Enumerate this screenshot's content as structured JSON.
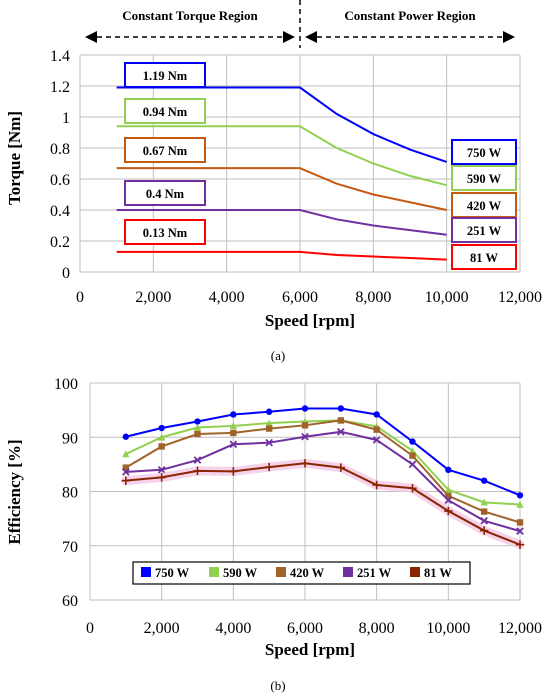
{
  "chart_data": [
    {
      "type": "line",
      "id": "torque",
      "regions": [
        {
          "label": "Constant Torque Region",
          "x_range": [
            0,
            6000
          ]
        },
        {
          "label": "Constant Power Region",
          "x_range": [
            6000,
            12000
          ]
        }
      ],
      "xlabel": "Speed [rpm]",
      "ylabel": "Torque [Nm]",
      "xlim": [
        0,
        12000
      ],
      "ylim": [
        0,
        1.4
      ],
      "x_ticks": [
        0,
        2000,
        4000,
        6000,
        8000,
        10000,
        12000
      ],
      "x_tick_labels": [
        "0",
        "2,000",
        "4,000",
        "6,000",
        "8,000",
        "10,000",
        "12,000"
      ],
      "y_ticks": [
        0,
        0.2,
        0.4,
        0.6,
        0.8,
        1.0,
        1.2,
        1.4
      ],
      "y_tick_labels": [
        "0",
        "0.2",
        "0.4",
        "0.6",
        "0.8",
        "1",
        "1.2",
        "1.4"
      ],
      "grid": true,
      "subfig_label": "(a)",
      "series": [
        {
          "torque_label": "1.19 Nm",
          "power_label": "750 W",
          "color": "#0000ff",
          "x": [
            1000,
            2000,
            3000,
            4000,
            5000,
            6000,
            7000,
            8000,
            9000,
            10000
          ],
          "y": [
            1.19,
            1.19,
            1.19,
            1.19,
            1.19,
            1.19,
            1.02,
            0.89,
            0.79,
            0.71
          ]
        },
        {
          "torque_label": "0.94 Nm",
          "power_label": "590 W",
          "color": "#92d050",
          "x": [
            1000,
            2000,
            3000,
            4000,
            5000,
            6000,
            7000,
            8000,
            9000,
            10000
          ],
          "y": [
            0.94,
            0.94,
            0.94,
            0.94,
            0.94,
            0.94,
            0.8,
            0.7,
            0.62,
            0.56
          ]
        },
        {
          "torque_label": "0.67 Nm",
          "power_label": "420 W",
          "color": "#c55a11",
          "x": [
            1000,
            2000,
            3000,
            4000,
            5000,
            6000,
            7000,
            8000,
            9000,
            10000
          ],
          "y": [
            0.67,
            0.67,
            0.67,
            0.67,
            0.67,
            0.67,
            0.57,
            0.5,
            0.45,
            0.4
          ]
        },
        {
          "torque_label": "0.4 Nm",
          "power_label": "251 W",
          "color": "#7030a0",
          "x": [
            1000,
            2000,
            3000,
            4000,
            5000,
            6000,
            7000,
            8000,
            9000,
            10000
          ],
          "y": [
            0.4,
            0.4,
            0.4,
            0.4,
            0.4,
            0.4,
            0.34,
            0.3,
            0.27,
            0.24
          ]
        },
        {
          "torque_label": "0.13 Nm",
          "power_label": "81 W",
          "color": "#ff0000",
          "x": [
            1000,
            2000,
            3000,
            4000,
            5000,
            6000,
            7000,
            8000,
            9000,
            10000
          ],
          "y": [
            0.13,
            0.13,
            0.13,
            0.13,
            0.13,
            0.13,
            0.11,
            0.1,
            0.09,
            0.08
          ]
        }
      ]
    },
    {
      "type": "line",
      "id": "efficiency",
      "xlabel": "Speed [rpm]",
      "ylabel": "Efficiency [%]",
      "xlim": [
        0,
        12000
      ],
      "ylim": [
        60,
        100
      ],
      "x_ticks": [
        0,
        2000,
        4000,
        6000,
        8000,
        10000,
        12000
      ],
      "x_tick_labels": [
        "0",
        "2,000",
        "4,000",
        "6,000",
        "8,000",
        "10,000",
        "12,000"
      ],
      "y_ticks": [
        60,
        70,
        80,
        90,
        100
      ],
      "y_tick_labels": [
        "60",
        "70",
        "80",
        "90",
        "100"
      ],
      "grid": true,
      "legend": "bottom-center",
      "subfig_label": "(b)",
      "x": [
        1000,
        2000,
        3000,
        4000,
        5000,
        6000,
        7000,
        8000,
        9000,
        10000,
        11000,
        12000
      ],
      "series": [
        {
          "name": "750 W",
          "color": "#0000ff",
          "marker": "circle",
          "values": [
            90.1,
            91.7,
            92.9,
            94.2,
            94.7,
            95.3,
            95.3,
            94.2,
            89.2,
            84.0,
            82.0,
            79.3
          ]
        },
        {
          "name": "590 W",
          "color": "#92d050",
          "marker": "triangle",
          "values": [
            86.9,
            90.0,
            91.8,
            92.1,
            92.6,
            92.9,
            93.1,
            92.0,
            87.5,
            80.3,
            78.0,
            77.6
          ]
        },
        {
          "name": "420 W",
          "color": "#a0642a",
          "marker": "square",
          "values": [
            84.4,
            88.3,
            90.6,
            90.8,
            91.6,
            92.2,
            93.1,
            91.4,
            86.6,
            79.2,
            76.3,
            74.3
          ]
        },
        {
          "name": "251 W",
          "color": "#7030a0",
          "marker": "x",
          "values": [
            83.6,
            84.0,
            85.8,
            88.7,
            89.0,
            90.1,
            91.0,
            89.5,
            85.0,
            78.4,
            74.6,
            72.7
          ]
        },
        {
          "name": "81 W",
          "color": "#8b2500",
          "marker": "plus",
          "values": [
            82.0,
            82.6,
            83.8,
            83.7,
            84.5,
            85.2,
            84.4,
            81.2,
            80.6,
            76.4,
            72.8,
            70.2
          ]
        }
      ]
    }
  ]
}
